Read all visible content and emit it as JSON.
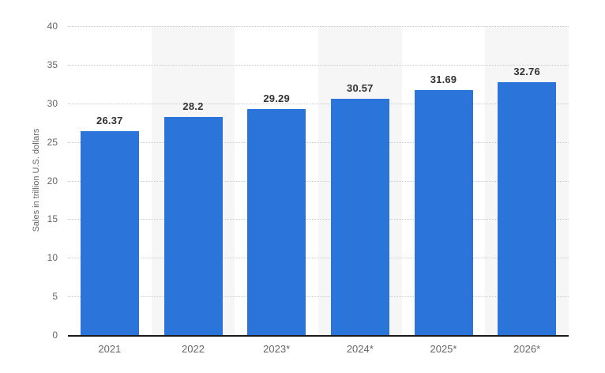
{
  "chart_data": {
    "type": "bar",
    "title": "",
    "categories": [
      "2021",
      "2022",
      "2023*",
      "2024*",
      "2025*",
      "2026*"
    ],
    "values": [
      26.37,
      28.2,
      29.29,
      30.57,
      31.69,
      32.76
    ],
    "value_labels": [
      "26.37",
      "28.2",
      "29.29",
      "30.57",
      "31.69",
      "32.76"
    ],
    "xlabel": "",
    "ylabel": "Sales in trillion U.S. dollars",
    "ylim": [
      0,
      40
    ],
    "yticks": [
      0,
      5,
      10,
      15,
      20,
      25,
      30,
      35,
      40
    ],
    "grid": "horizontal-dotted",
    "legend": "none",
    "banded_columns": [
      1,
      3,
      5
    ],
    "colors": {
      "bar": "#2a74da",
      "band": "#f6f6f6",
      "grid": "#cccccc",
      "axis_line": "#1a1a1a",
      "value_label": "#333333",
      "tick_label": "#666666",
      "axis_title": "#666666",
      "background": "#ffffff"
    }
  }
}
